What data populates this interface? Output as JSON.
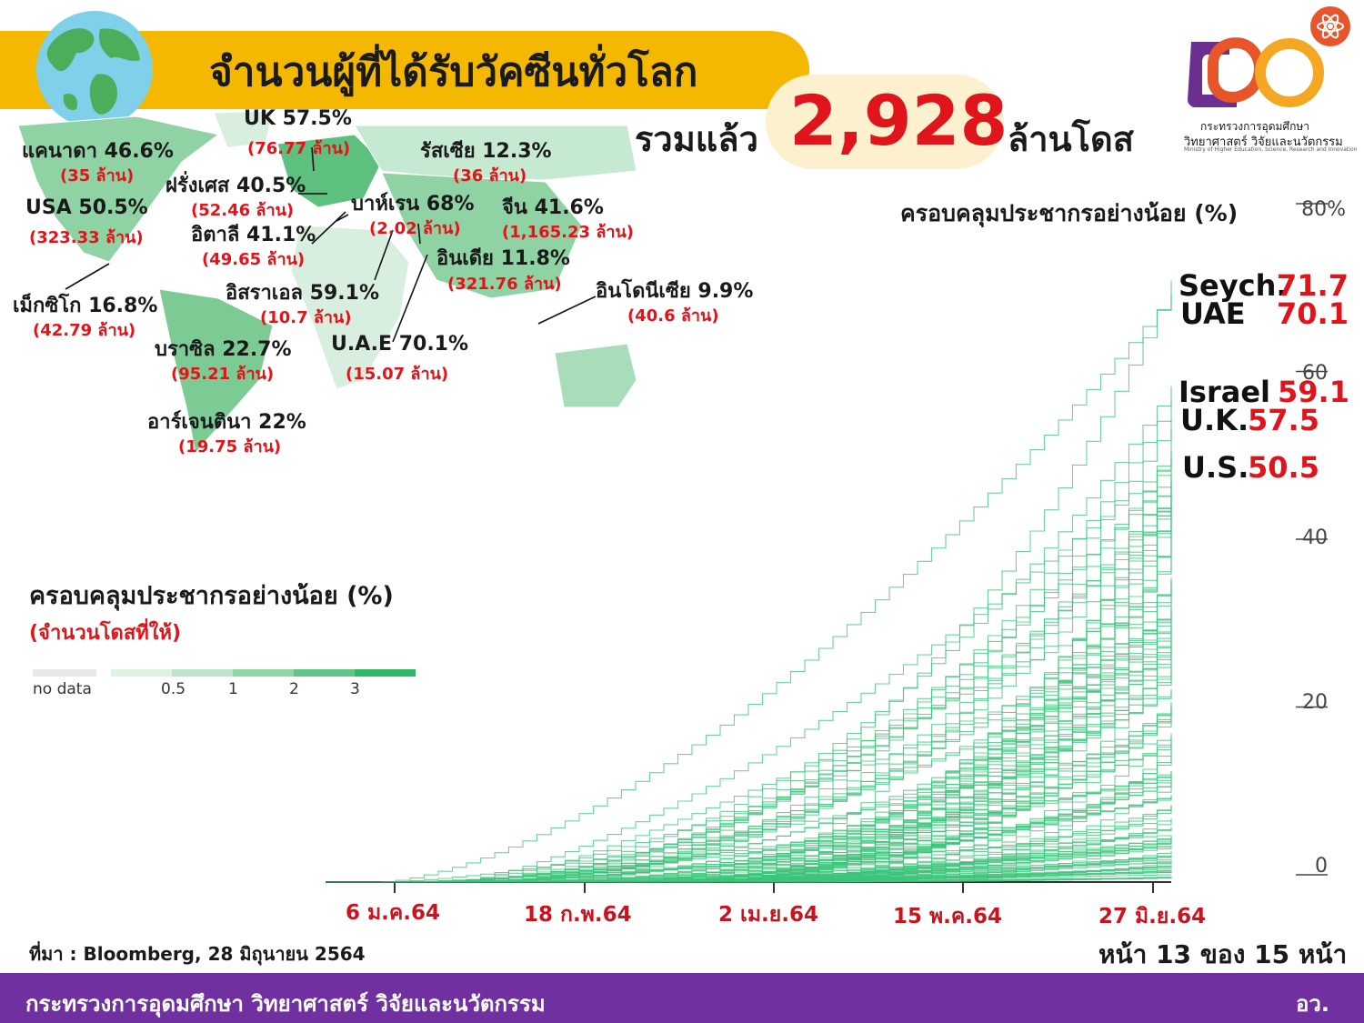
{
  "header": {
    "title": "จำนวนผู้ที่ได้รับวัคซีนทั่วโลก",
    "total_prefix": "รวมแล้ว",
    "total_value": "2,928",
    "total_suffix": "ล้านโดส"
  },
  "logo": {
    "line1": "กระทรวงการอุดมศึกษา",
    "line2": "วิทยาศาสตร์ วิจัยและนวัตกรรม",
    "line3": "Ministry of Higher Education, Science, Research and Innovation"
  },
  "map": {
    "labels": [
      {
        "name": "uk",
        "text": "UK 57.5%",
        "sub": "(76.77 ล้าน)"
      },
      {
        "name": "canada",
        "text": "แคนาดา 46.6%",
        "sub": "(35 ล้าน)"
      },
      {
        "name": "russia",
        "text": "รัสเซีย 12.3%",
        "sub": "(36 ล้าน)"
      },
      {
        "name": "france",
        "text": "ฝรั่งเศส 40.5%",
        "sub": "(52.46 ล้าน)"
      },
      {
        "name": "usa",
        "text": "USA 50.5%",
        "sub": "(323.33 ล้าน)"
      },
      {
        "name": "bahrain",
        "text": "บาห์เรน 68%",
        "sub": "(2.02 ล้าน)"
      },
      {
        "name": "china",
        "text": "จีน 41.6%",
        "sub": "(1,165.23 ล้าน)"
      },
      {
        "name": "italy",
        "text": "อิตาลี 41.1%",
        "sub": "(49.65 ล้าน)"
      },
      {
        "name": "india",
        "text": "อินเดีย 11.8%",
        "sub": "(321.76 ล้าน)"
      },
      {
        "name": "mexico",
        "text": "เม็กซิโก 16.8%",
        "sub": "(42.79 ล้าน)"
      },
      {
        "name": "israel",
        "text": "อิสราเอล 59.1%",
        "sub": "(10.7 ล้าน)"
      },
      {
        "name": "indonesia",
        "text": "อินโดนีเซีย 9.9%",
        "sub": "(40.6 ล้าน)"
      },
      {
        "name": "brazil",
        "text": "บราซิล 22.7%",
        "sub": "(95.21 ล้าน)"
      },
      {
        "name": "uae",
        "text": "U.A.E 70.1%",
        "sub": "(15.07 ล้าน)"
      },
      {
        "name": "argentina",
        "text": "อาร์เจนตินา 22%",
        "sub": "(19.75 ล้าน)"
      }
    ],
    "colors": {
      "ocean": "#ffffff",
      "land_light": "#d8efdf",
      "land_mid": "#8fd2a4",
      "land_dark": "#5ec07e"
    }
  },
  "legend": {
    "title": "ครอบคลุมประชากรอย่างน้อย (%)",
    "subtitle": "(จำนวนโดสที่ให้)",
    "no_data": "no data",
    "ticks": [
      "0.5",
      "1",
      "2",
      "3"
    ],
    "colors": [
      "#e8e8e8",
      "#dcf3e4",
      "#b9e6c8",
      "#8fd6a6",
      "#63c585",
      "#2eb866"
    ]
  },
  "chart_data": {
    "type": "line",
    "title": "ครอบคลุมประชากรอย่างน้อย (%)",
    "x_tick_labels": [
      "6 ม.ค.64",
      "18 ก.พ.64",
      "2 เม.ย.64",
      "15 พ.ค.64",
      "27 มิ.ย.64"
    ],
    "y_ticks": [
      0,
      20,
      40,
      60,
      80
    ],
    "y_tick_labels": [
      "0",
      "20",
      "40",
      "60",
      "80%"
    ],
    "ylim": [
      0,
      80
    ],
    "line_color": "#3cc47a",
    "highlighted": [
      {
        "name": "Seych.",
        "value": "71.7"
      },
      {
        "name": "UAE",
        "value": "70.1"
      },
      {
        "name": "Israel",
        "value": "59.1"
      },
      {
        "name": "U.K.",
        "value": "57.5"
      },
      {
        "name": "U.S.",
        "value": "50.5"
      }
    ]
  },
  "footer": {
    "source": "ที่มา : Bloomberg, 28 มิถุนายน 2564",
    "page": "หน้า 13 ของ 15 หน้า",
    "ministry": "กระทรวงการอุดมศึกษา วิทยาศาสตร์ วิจัยและนวัตกรรม",
    "abbr": "อว."
  }
}
